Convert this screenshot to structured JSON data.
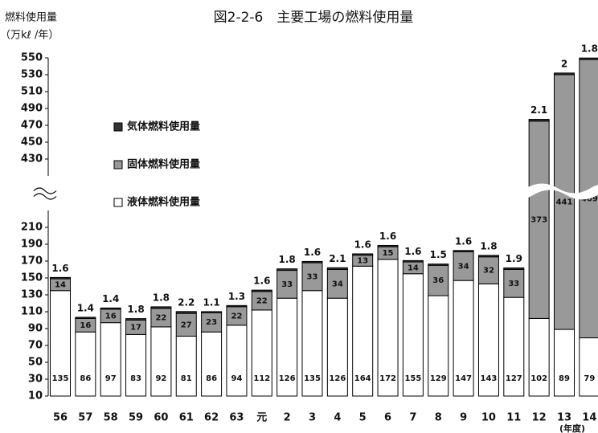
{
  "chart_data": {
    "type": "bar",
    "stacked": true,
    "title": "図2-2-6　主要工場の燃料使用量",
    "y_label": "燃料使用量",
    "y_unit": "（万kℓ /年）",
    "x_label": "(年度)",
    "categories": [
      "56",
      "57",
      "58",
      "59",
      "60",
      "61",
      "62",
      "63",
      "元",
      "2",
      "3",
      "4",
      "5",
      "6",
      "7",
      "8",
      "9",
      "10",
      "11",
      "12",
      "13",
      "14"
    ],
    "series": [
      {
        "name": "液体燃料使用量",
        "color": "#ffffff",
        "values": [
          135,
          86,
          97,
          83,
          92,
          81,
          86,
          94,
          112,
          126,
          135,
          126,
          164,
          172,
          155,
          129,
          147,
          143,
          127,
          102,
          89,
          79
        ]
      },
      {
        "name": "固体燃料使用量",
        "color": "#999999",
        "values": [
          14,
          16,
          16,
          17,
          22,
          27,
          23,
          22,
          22,
          33,
          33,
          34,
          13,
          15,
          14,
          36,
          34,
          32,
          33,
          373,
          441,
          469
        ]
      },
      {
        "name": "気体燃料使用量",
        "color": "#333333",
        "values": [
          1.6,
          1.4,
          1.4,
          1.8,
          1.8,
          2.2,
          1.1,
          1.3,
          1.6,
          1.8,
          1.6,
          2.1,
          1.6,
          1.6,
          1.6,
          1.5,
          1.6,
          1.8,
          1.9,
          2.1,
          2.0,
          1.8
        ]
      }
    ],
    "ylim": [
      10,
      550
    ],
    "axis_break": [
      230,
      410
    ],
    "yticks": [
      10,
      30,
      50,
      70,
      90,
      110,
      130,
      150,
      170,
      190,
      210,
      430,
      450,
      470,
      490,
      510,
      530,
      550
    ]
  }
}
